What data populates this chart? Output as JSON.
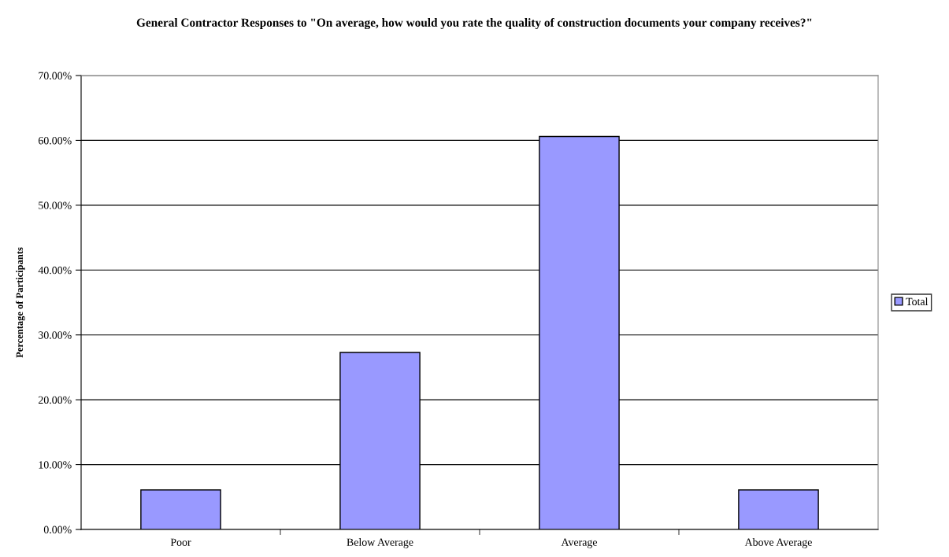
{
  "chart_data": {
    "type": "bar",
    "title": "General Contractor Responses to \"On average, how would you rate the quality of construction documents your company receives?\"",
    "ylabel": "Percentage of Participants",
    "categories": [
      "Poor",
      "Below Average",
      "Average",
      "Above Average"
    ],
    "series": [
      {
        "name": "Total",
        "color": "#9999ff",
        "values": [
          6.1,
          27.3,
          60.6,
          6.1
        ]
      }
    ],
    "ylim": [
      0,
      70
    ],
    "yticks": [
      {
        "value": 0,
        "label": "0.00%"
      },
      {
        "value": 10,
        "label": "10.00%"
      },
      {
        "value": 20,
        "label": "20.00%"
      },
      {
        "value": 30,
        "label": "30.00%"
      },
      {
        "value": 40,
        "label": "40.00%"
      },
      {
        "value": 50,
        "label": "50.00%"
      },
      {
        "value": 60,
        "label": "60.00%"
      },
      {
        "value": 70,
        "label": "70.00%"
      }
    ],
    "grid": "y",
    "legend": "right"
  }
}
